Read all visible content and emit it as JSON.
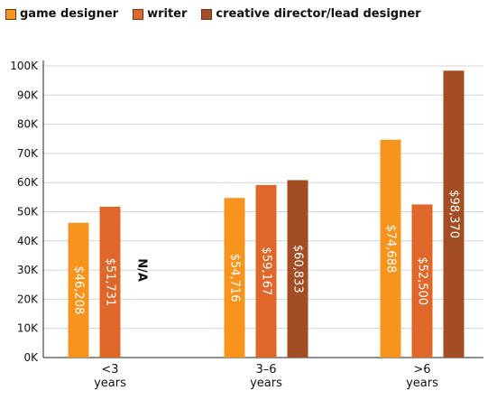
{
  "chart_data": {
    "type": "bar",
    "categories": [
      "<3\nyears",
      "3–6\nyears",
      ">6\nyears"
    ],
    "series": [
      {
        "name": "game designer",
        "color": "#F7941D",
        "values": [
          46208,
          54716,
          74688
        ],
        "labels": [
          "$46,208",
          "$54,716",
          "$74,688"
        ]
      },
      {
        "name": "writer",
        "color": "#E0672A",
        "values": [
          51731,
          59167,
          52500
        ],
        "labels": [
          "$51,731",
          "$59,167",
          "$52,500"
        ]
      },
      {
        "name": "creative director/lead designer",
        "color": "#A24D23",
        "values": [
          null,
          60833,
          98370
        ],
        "labels": [
          "N/A",
          "$60,833",
          "$98,370"
        ]
      }
    ],
    "yticks": [
      "0K",
      "10K",
      "20K",
      "30K",
      "40K",
      "50K",
      "60K",
      "70K",
      "80K",
      "90K",
      "100K"
    ],
    "ylim": [
      0,
      100000
    ],
    "grid": true,
    "legend_position": "top",
    "title": "",
    "xlabel": "",
    "ylabel": ""
  }
}
